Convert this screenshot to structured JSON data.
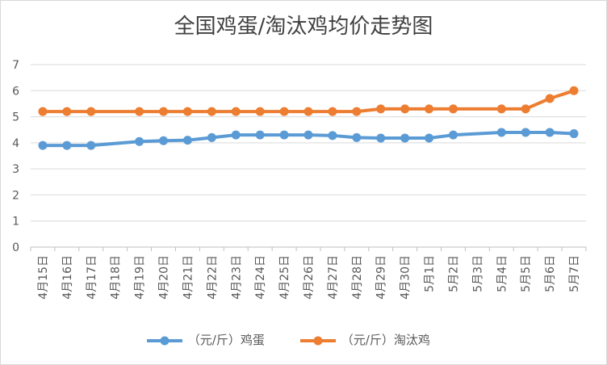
{
  "chart_data": {
    "type": "line",
    "title": "全国鸡蛋/淘汰鸡均价走势图",
    "categories": [
      "4月15日",
      "4月16日",
      "4月17日",
      "4月18日",
      "4月19日",
      "4月20日",
      "4月21日",
      "4月22日",
      "4月23日",
      "4月24日",
      "4月25日",
      "4月26日",
      "4月27日",
      "4月28日",
      "4月29日",
      "4月30日",
      "5月1日",
      "5月2日",
      "5月3日",
      "5月4日",
      "5月5日",
      "5月6日",
      "5月7日"
    ],
    "ylim": [
      0,
      7
    ],
    "yticks": [
      "0",
      "1",
      "2",
      "3",
      "4",
      "5",
      "6",
      "7"
    ],
    "grid": true,
    "legend_position": "bottom",
    "series": [
      {
        "name": "（元/斤）鸡蛋",
        "color": "#5B9BD5",
        "values": [
          3.9,
          3.9,
          3.9,
          null,
          4.05,
          4.08,
          4.1,
          4.2,
          4.3,
          4.3,
          4.3,
          4.3,
          4.28,
          4.2,
          4.18,
          4.18,
          4.18,
          4.3,
          null,
          4.4,
          4.4,
          4.4,
          4.35
        ]
      },
      {
        "name": "（元/斤）淘汰鸡",
        "color": "#ED7D31",
        "values": [
          5.2,
          5.2,
          5.2,
          null,
          5.2,
          5.2,
          5.2,
          5.2,
          5.2,
          5.2,
          5.2,
          5.2,
          5.2,
          5.2,
          5.3,
          5.3,
          5.3,
          5.3,
          null,
          5.3,
          5.3,
          5.7,
          6.0
        ]
      }
    ]
  }
}
